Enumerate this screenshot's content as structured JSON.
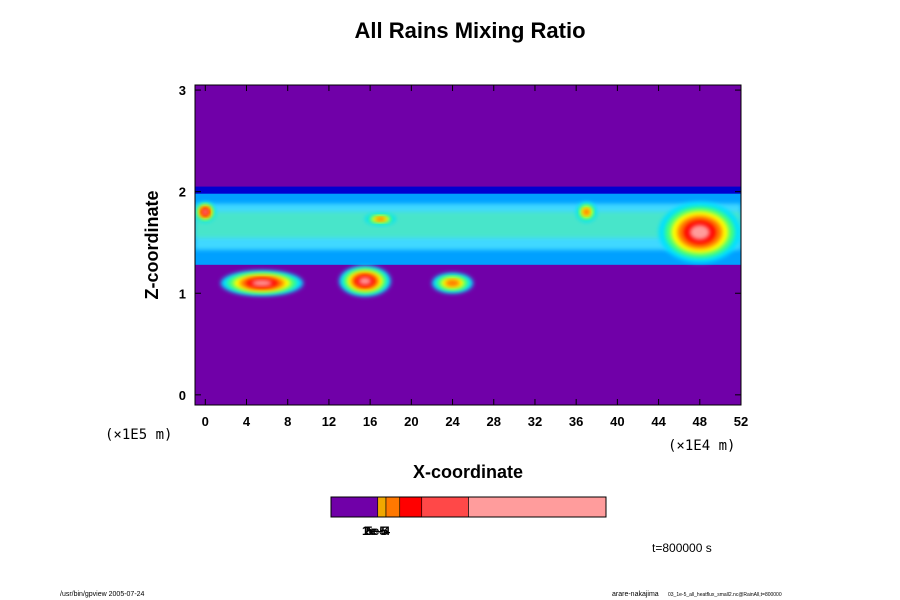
{
  "chart_data": {
    "type": "heatmap",
    "title": "All Rains Mixing Ratio",
    "xlabel": "X-coordinate",
    "ylabel": "Z-coordinate",
    "x_unit_label": "(×1E4 m)",
    "y_unit_label": "(×1E5 m)",
    "xlim": [
      -1,
      52
    ],
    "ylim": [
      -0.1,
      3.05
    ],
    "x_ticks": [
      "0",
      "4",
      "8",
      "12",
      "16",
      "20",
      "24",
      "28",
      "32",
      "36",
      "40",
      "44",
      "48",
      "52"
    ],
    "y_ticks": [
      "0",
      "1",
      "2",
      "3"
    ],
    "background_color": "#7000a8",
    "colorbar": {
      "colors": [
        "#7000a8",
        "#f0a800",
        "#ff7800",
        "#ff0000",
        "#ff4848",
        "#ff9c9c"
      ],
      "segment_fractions": [
        0.17,
        0.03,
        0.05,
        0.08,
        0.17,
        0.5
      ],
      "tick_labels": [
        "1e-5",
        "2e-5",
        "5e-4"
      ]
    },
    "time_label": "t=800000 s",
    "footer_left": "/usr/bin/gpview 2005-07-24",
    "footer_right_main": "arare-nakajima",
    "footer_right_sub": "03_1e-5_all_heatflux_small2.nc@RainAll,t=800000",
    "features": [
      {
        "kind": "layer-top",
        "zmin": 1.95,
        "zmax": 2.05,
        "color": "#0000d0"
      },
      {
        "kind": "cloud-band",
        "xmin": -1,
        "xmax": 52,
        "zmin": 1.28,
        "zmax": 1.98,
        "color": "#00a0ff"
      },
      {
        "kind": "blob",
        "x": 5.5,
        "z": 1.1,
        "w": 8,
        "h": 0.25,
        "level": "high"
      },
      {
        "kind": "blob",
        "x": 15.5,
        "z": 1.12,
        "w": 5,
        "h": 0.3,
        "level": "high"
      },
      {
        "kind": "blob",
        "x": 24,
        "z": 1.1,
        "w": 4,
        "h": 0.2,
        "level": "mid"
      },
      {
        "kind": "blob",
        "x": 17,
        "z": 1.73,
        "w": 3,
        "h": 0.12,
        "level": "mid"
      },
      {
        "kind": "blob",
        "x": 48,
        "z": 1.6,
        "w": 8,
        "h": 0.6,
        "level": "high"
      },
      {
        "kind": "blob",
        "x": 0,
        "z": 1.8,
        "w": 2,
        "h": 0.2,
        "level": "high"
      },
      {
        "kind": "blob",
        "x": 37,
        "z": 1.8,
        "w": 2,
        "h": 0.2,
        "level": "mid"
      }
    ]
  }
}
